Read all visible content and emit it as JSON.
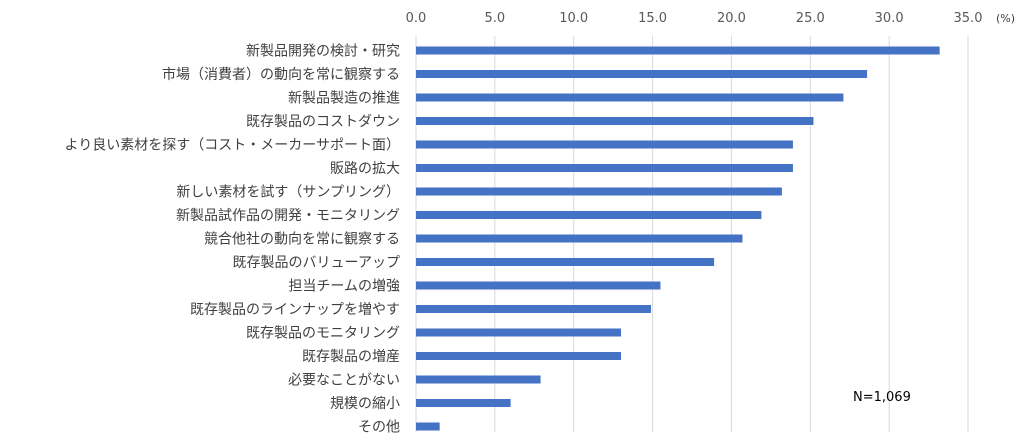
{
  "chart_data": {
    "type": "bar",
    "orientation": "horizontal",
    "unit_label": "(%)",
    "note": "N=1,069",
    "xlim": [
      0,
      35
    ],
    "x_ticks": [
      "0.0",
      "5.0",
      "10.0",
      "15.0",
      "20.0",
      "25.0",
      "30.0",
      "35.0"
    ],
    "x_axis_position": "top",
    "grid": true,
    "bar_color": "#4472C4",
    "categories": [
      "新製品開発の検討・研究",
      "市場（消費者）の動向を常に観察する",
      "新製品製造の推進",
      "既存製品のコストダウン",
      "より良い素材を探す（コスト・メーカーサポート面）",
      "販路の拡大",
      "新しい素材を試す（サンプリング）",
      "新製品試作品の開発・モニタリング",
      "競合他社の動向を常に観察する",
      "既存製品のバリューアップ",
      "担当チームの増強",
      "既存製品のラインナップを増やす",
      "既存製品のモニタリング",
      "既存製品の増産",
      "必要なことがない",
      "規模の縮小",
      "その他"
    ],
    "values": [
      33.2,
      28.6,
      27.1,
      25.2,
      23.9,
      23.9,
      23.2,
      21.9,
      20.7,
      18.9,
      15.5,
      14.9,
      13.0,
      13.0,
      7.9,
      6.0,
      1.5
    ]
  }
}
